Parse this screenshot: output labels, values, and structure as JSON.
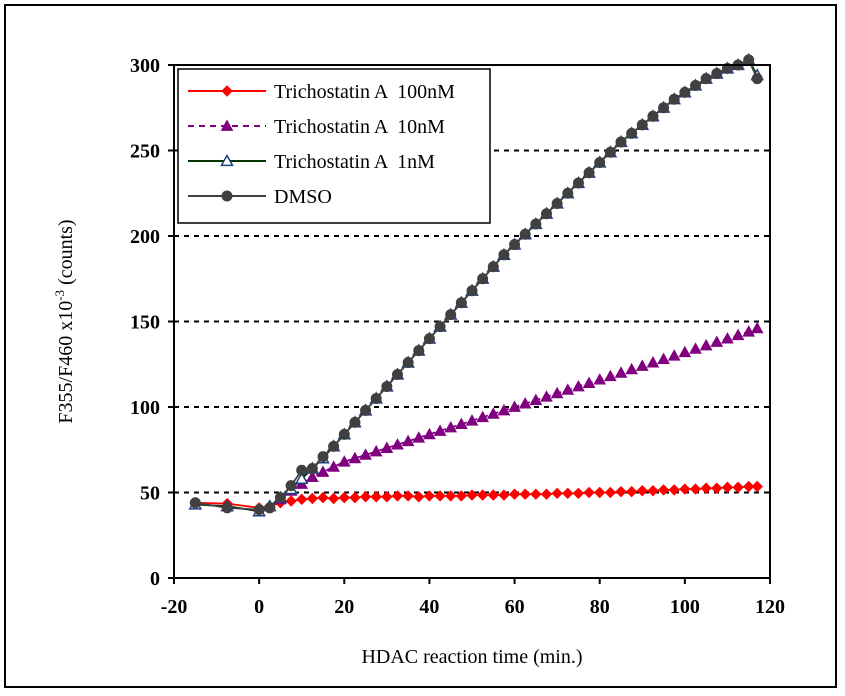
{
  "chart_data": {
    "type": "line",
    "xlabel": "HDAC reaction time (min.)",
    "ylabel_base": "F355/F460 x10",
    "ylabel_exp": "-3",
    "ylabel_unit": " (counts)",
    "xlim": [
      -20,
      120
    ],
    "ylim": [
      0,
      300
    ],
    "x_ticks": [
      -20,
      0,
      20,
      40,
      60,
      80,
      100,
      120
    ],
    "y_ticks": [
      0,
      50,
      100,
      150,
      200,
      250,
      300
    ],
    "grid": "horizontal dashed",
    "legend_position": "top-left",
    "x": [
      -15,
      -7.5,
      0,
      2.5,
      5,
      7.5,
      10,
      12.5,
      15,
      17.5,
      20,
      22.5,
      25,
      27.5,
      30,
      32.5,
      35,
      37.5,
      40,
      42.5,
      45,
      47.5,
      50,
      52.5,
      55,
      57.5,
      60,
      62.5,
      65,
      67.5,
      70,
      72.5,
      75,
      77.5,
      80,
      82.5,
      85,
      87.5,
      90,
      92.5,
      95,
      97.5,
      100,
      102.5,
      105,
      107.5,
      110,
      112.5,
      115,
      117
    ],
    "series": [
      {
        "name": "Trichostatin A  100nM",
        "color": "#ff0000",
        "marker": "diamond",
        "line": "solid",
        "values": [
          44,
          43.5,
          41,
          42,
          44,
          45,
          46,
          46.5,
          47,
          46.5,
          47,
          47,
          47.5,
          47.5,
          47.5,
          48,
          48,
          47.5,
          48,
          48,
          48,
          48,
          48.5,
          48.5,
          48.5,
          48.5,
          49,
          49,
          49,
          49,
          49.5,
          49.5,
          49.5,
          50,
          50,
          50,
          50.5,
          50.5,
          51,
          51,
          51.5,
          51.5,
          52,
          52,
          52.5,
          52.5,
          53,
          53,
          53.5,
          53.5
        ]
      },
      {
        "name": "Trichostatin A  10nM",
        "color": "#800080",
        "marker": "triangle",
        "line": "dashed",
        "values": [
          43,
          42,
          39,
          42,
          46,
          51,
          55,
          59,
          62,
          65,
          68,
          70,
          72,
          74,
          76,
          78,
          80,
          82,
          84,
          86,
          88,
          90,
          92,
          94,
          96,
          98,
          100,
          102,
          104,
          106,
          108,
          110,
          112,
          114,
          116,
          118,
          120,
          122,
          124,
          126,
          128,
          130,
          132,
          134,
          136,
          138,
          140,
          142,
          144,
          146
        ]
      },
      {
        "name": "Trichostatin A  1nM",
        "color": "#003300",
        "marker": "open-triangle",
        "line": "solid",
        "values": [
          43,
          42,
          39,
          42,
          47,
          52,
          58,
          64,
          70,
          77,
          84,
          91,
          98,
          105,
          112,
          119,
          126,
          133,
          140,
          147,
          154,
          161,
          168,
          175,
          182,
          189,
          195,
          201,
          207,
          213,
          219,
          225,
          231,
          237,
          243,
          249,
          255,
          260,
          265,
          270,
          275,
          280,
          284,
          288,
          292,
          295,
          298,
          300,
          303,
          294
        ]
      },
      {
        "name": "DMSO",
        "color": "#404040",
        "marker": "circle",
        "line": "solid",
        "values": [
          44,
          41,
          40,
          41,
          47,
          54,
          63,
          64,
          71,
          77,
          84,
          91,
          98,
          105,
          112,
          119,
          126,
          133,
          140,
          147,
          154,
          161,
          168,
          175,
          182,
          189,
          195,
          201,
          207,
          213,
          219,
          225,
          231,
          237,
          243,
          249,
          255,
          260,
          265,
          270,
          275,
          280,
          284,
          288,
          292,
          295,
          298,
          300,
          303,
          292
        ]
      }
    ]
  }
}
